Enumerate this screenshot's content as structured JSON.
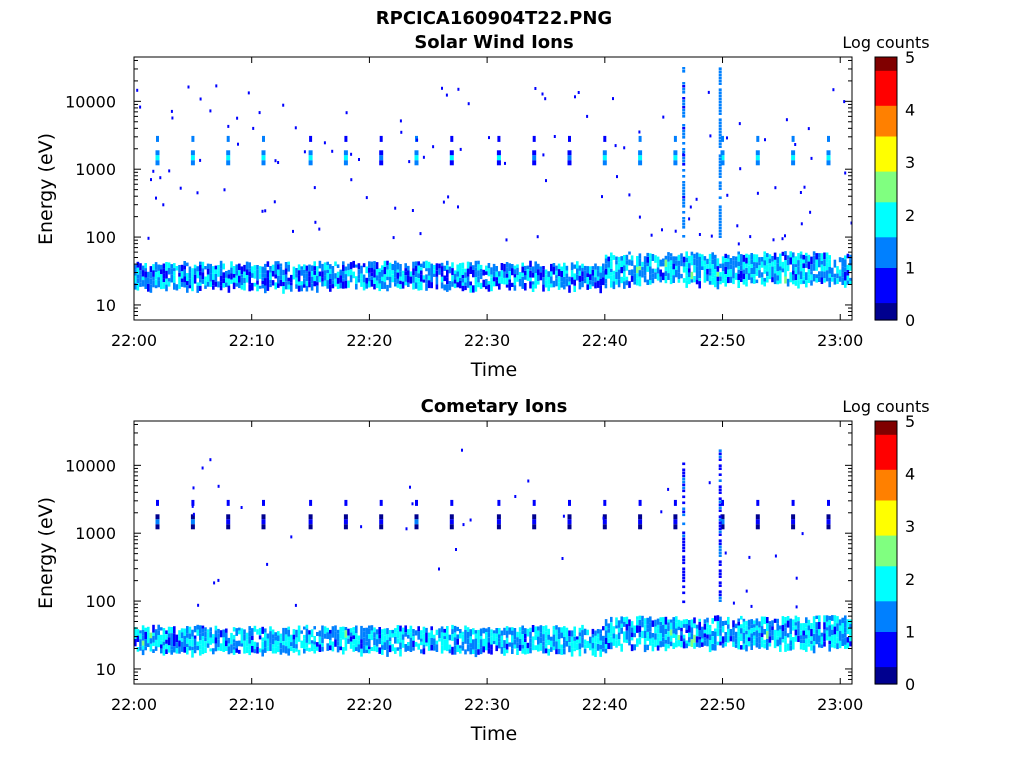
{
  "figure": {
    "title": "RPCICA160904T22.PNG"
  },
  "colorscale": [
    "#00008f",
    "#0000ff",
    "#0080ff",
    "#00ffff",
    "#80ff80",
    "#ffff00",
    "#ff8000",
    "#ff0000",
    "#800000"
  ],
  "chart_data": [
    {
      "type": "heatmap",
      "title": "Solar Wind Ions",
      "xlabel": "Time",
      "ylabel": "Energy (eV)",
      "y_scale": "log",
      "ylim": [
        6,
        45000
      ],
      "xlim": [
        "22:00",
        "23:01"
      ],
      "x_ticks": [
        "22:00",
        "22:10",
        "22:20",
        "22:30",
        "22:40",
        "22:50",
        "23:00"
      ],
      "y_ticks": [
        "10",
        "100",
        "1000",
        "10000"
      ],
      "colorbar": {
        "label": "Log counts",
        "range": [
          0,
          5
        ],
        "ticks": [
          "0",
          "1",
          "2",
          "3",
          "4",
          "5"
        ]
      },
      "bands": [
        {
          "t_start": "22:00",
          "t_end": "22:40",
          "e_low": 19,
          "e_high": 42,
          "level": 1.3
        },
        {
          "t_start": "22:40",
          "t_end": "23:01",
          "e_low": 22,
          "e_high": 58,
          "level": 1.5
        }
      ],
      "bursts": [
        {
          "t": "22:02",
          "e": 1400,
          "level": 2.0
        },
        {
          "t": "22:05",
          "e": 1400,
          "level": 2.0
        },
        {
          "t": "22:08",
          "e": 1400,
          "level": 2.0
        },
        {
          "t": "22:11",
          "e": 1400,
          "level": 2.0
        },
        {
          "t": "22:15",
          "e": 1400,
          "level": 1.8
        },
        {
          "t": "22:18",
          "e": 1400,
          "level": 1.8
        },
        {
          "t": "22:21",
          "e": 1400,
          "level": 1.5
        },
        {
          "t": "22:24",
          "e": 1400,
          "level": 1.9
        },
        {
          "t": "22:27",
          "e": 1400,
          "level": 1.6
        },
        {
          "t": "22:31",
          "e": 1400,
          "level": 1.6
        },
        {
          "t": "22:34",
          "e": 1400,
          "level": 1.5
        },
        {
          "t": "22:37",
          "e": 1400,
          "level": 1.5
        },
        {
          "t": "22:40",
          "e": 1400,
          "level": 1.7
        },
        {
          "t": "22:43",
          "e": 1400,
          "level": 2.0
        },
        {
          "t": "22:46",
          "e": 1400,
          "level": 2.0
        },
        {
          "t": "22:50",
          "e": 1400,
          "level": 2.1
        },
        {
          "t": "22:53",
          "e": 1400,
          "level": 2.0
        },
        {
          "t": "22:56",
          "e": 1400,
          "level": 1.9
        },
        {
          "t": "22:59",
          "e": 1400,
          "level": 2.0
        }
      ],
      "spikes": [
        {
          "t": "22:46.7",
          "e_low": 100,
          "e_high": 32000,
          "level": 0.9
        },
        {
          "t": "22:49.8",
          "e_low": 100,
          "e_high": 35000,
          "level": 1.0
        }
      ]
    },
    {
      "type": "heatmap",
      "title": "Cometary Ions",
      "xlabel": "Time",
      "ylabel": "Energy (eV)",
      "y_scale": "log",
      "ylim": [
        6,
        45000
      ],
      "xlim": [
        "22:00",
        "23:01"
      ],
      "x_ticks": [
        "22:00",
        "22:10",
        "22:20",
        "22:30",
        "22:40",
        "22:50",
        "23:00"
      ],
      "y_ticks": [
        "10",
        "100",
        "1000",
        "10000"
      ],
      "colorbar": {
        "label": "Log counts",
        "range": [
          0,
          5
        ],
        "ticks": [
          "0",
          "1",
          "2",
          "3",
          "4",
          "5"
        ]
      },
      "bands": [
        {
          "t_start": "22:00",
          "t_end": "22:40",
          "e_low": 19,
          "e_high": 42,
          "level": 1.5
        },
        {
          "t_start": "22:40",
          "t_end": "23:01",
          "e_low": 22,
          "e_high": 58,
          "level": 1.5
        }
      ],
      "bursts": [
        {
          "t": "22:02",
          "e": 1400,
          "level": 1.0
        },
        {
          "t": "22:05",
          "e": 1400,
          "level": 1.0
        },
        {
          "t": "22:08",
          "e": 1400,
          "level": 0.9
        },
        {
          "t": "22:11",
          "e": 1400,
          "level": 0.8
        },
        {
          "t": "22:15",
          "e": 1400,
          "level": 0.8
        },
        {
          "t": "22:18",
          "e": 1400,
          "level": 0.8
        },
        {
          "t": "22:21",
          "e": 1400,
          "level": 0.7
        },
        {
          "t": "22:24",
          "e": 1400,
          "level": 1.0
        },
        {
          "t": "22:27",
          "e": 1400,
          "level": 0.8
        },
        {
          "t": "22:31",
          "e": 1400,
          "level": 0.8
        },
        {
          "t": "22:34",
          "e": 1400,
          "level": 0.8
        },
        {
          "t": "22:37",
          "e": 1400,
          "level": 0.8
        },
        {
          "t": "22:40",
          "e": 1400,
          "level": 0.8
        },
        {
          "t": "22:43",
          "e": 1400,
          "level": 0.9
        },
        {
          "t": "22:46",
          "e": 1400,
          "level": 0.9
        },
        {
          "t": "22:50",
          "e": 1400,
          "level": 1.0
        },
        {
          "t": "22:53",
          "e": 1400,
          "level": 0.9
        },
        {
          "t": "22:56",
          "e": 1400,
          "level": 0.9
        },
        {
          "t": "22:59",
          "e": 1400,
          "level": 0.9
        }
      ],
      "spikes": [
        {
          "t": "22:46.7",
          "e_low": 100,
          "e_high": 11000,
          "level": 0.6
        },
        {
          "t": "22:49.8",
          "e_low": 100,
          "e_high": 19000,
          "level": 0.6
        }
      ]
    }
  ]
}
